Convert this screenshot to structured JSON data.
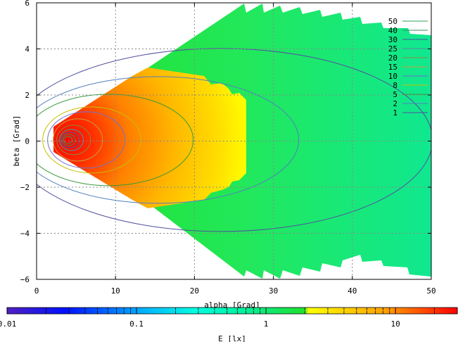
{
  "chart_data": {
    "type": "heatmap",
    "xlabel": "alpha [Grad]",
    "ylabel": "beta [Grad]",
    "xlim": [
      0,
      50
    ],
    "ylim": [
      6,
      -6
    ],
    "xticks": [
      0,
      10,
      20,
      30,
      40,
      50
    ],
    "yticks": [
      -6,
      -4,
      -2,
      0,
      2,
      4,
      6
    ],
    "grid": true,
    "legend_position": "top-right",
    "contour_levels": [
      50,
      40,
      30,
      25,
      20,
      15,
      10,
      8,
      5,
      2,
      1
    ],
    "contour_colors": [
      "#2ea05a",
      "#3a8a5a",
      "#4060a0",
      "#40a0a0",
      "#8a8a3a",
      "#c8a040",
      "#7070d0",
      "#c8c000",
      "#3a9a3a",
      "#5080c0",
      "#5050a0"
    ],
    "peak": {
      "x": 3.8,
      "y": 0.05
    },
    "colorbar": {
      "label": "E [lx]",
      "scale": "log",
      "range": [
        0.01,
        30
      ],
      "ticks": [
        {
          "value": 0.01,
          "label": "0.01"
        },
        {
          "value": 0.1,
          "label": "0.1"
        },
        {
          "value": 1,
          "label": "1"
        },
        {
          "value": 10,
          "label": "10"
        }
      ]
    }
  }
}
